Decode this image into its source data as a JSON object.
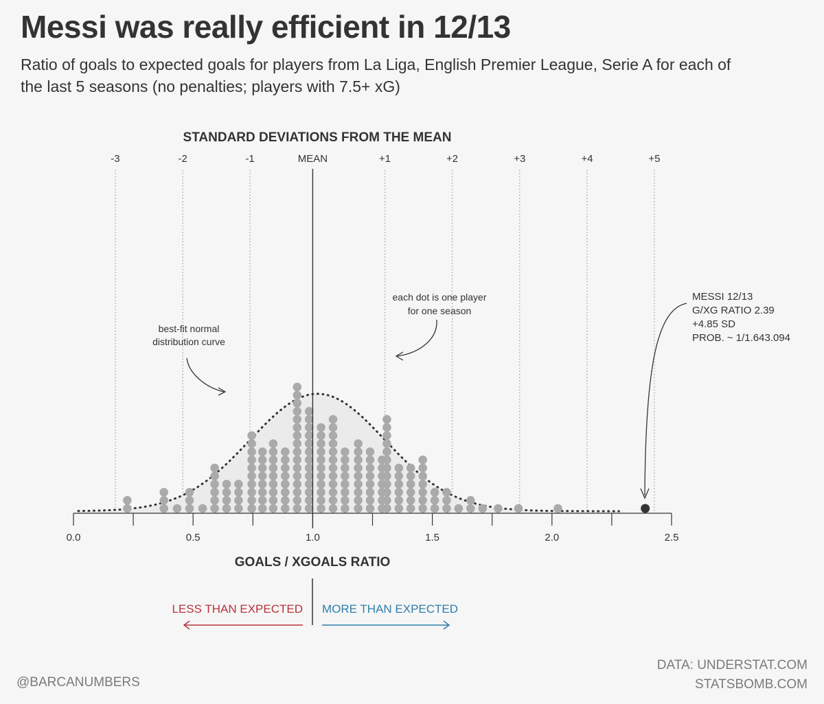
{
  "header": {
    "title": "Messi was really efficient in 12/13",
    "subtitle": "Ratio of goals to expected goals for players from La Liga, English Premier League, Serie A for each of the last 5 seasons (no penalties; players with 7.5+ xG)"
  },
  "footer": {
    "left": "@BARCANUMBERS",
    "right_line1": "DATA: UNDERSTAT.COM",
    "right_line2": "STATSBOMB.COM"
  },
  "colors": {
    "text": "#333333",
    "dot": "#aaaaaa",
    "highlight_dot": "#333333",
    "curve_fill": "#ebebeb",
    "less_color": "#b8323a",
    "more_color": "#2f7ea8",
    "footer": "#7a7a7a"
  },
  "chart_data": {
    "type": "dot-histogram",
    "xlabel": "GOALS / XGOALS RATIO",
    "top_axis_label": "STANDARD DEVIATIONS FROM THE MEAN",
    "xlim": [
      0.0,
      2.5
    ],
    "x_ticks": [
      0.0,
      0.5,
      1.0,
      1.5,
      2.0,
      2.5
    ],
    "x_tick_labels": [
      "0.0",
      "0.5",
      "1.0",
      "1.5",
      "2.0",
      "2.5"
    ],
    "x_minor_ticks": [
      0.25,
      0.75,
      1.25,
      1.75,
      2.25
    ],
    "sd_lines": [
      {
        "label": "-3",
        "x": 0.175
      },
      {
        "label": "-2",
        "x": 0.457
      },
      {
        "label": "-1",
        "x": 0.738
      },
      {
        "label": "MEAN",
        "x": 1.0
      },
      {
        "label": "+1",
        "x": 1.302
      },
      {
        "label": "+2",
        "x": 1.583
      },
      {
        "label": "+3",
        "x": 1.865
      },
      {
        "label": "+4",
        "x": 2.147
      },
      {
        "label": "+5",
        "x": 2.428
      }
    ],
    "normal_curve": {
      "mean": 1.02,
      "sd": 0.282,
      "peak_dots": 14.5
    },
    "columns": [
      {
        "x": 0.225,
        "count": 2
      },
      {
        "x": 0.378,
        "count": 3
      },
      {
        "x": 0.433,
        "count": 1
      },
      {
        "x": 0.485,
        "count": 3
      },
      {
        "x": 0.54,
        "count": 1
      },
      {
        "x": 0.59,
        "count": 6
      },
      {
        "x": 0.64,
        "count": 4
      },
      {
        "x": 0.69,
        "count": 4
      },
      {
        "x": 0.745,
        "count": 10
      },
      {
        "x": 0.79,
        "count": 8
      },
      {
        "x": 0.835,
        "count": 9
      },
      {
        "x": 0.885,
        "count": 8
      },
      {
        "x": 0.935,
        "count": 16
      },
      {
        "x": 0.985,
        "count": 13
      },
      {
        "x": 1.035,
        "count": 11
      },
      {
        "x": 1.085,
        "count": 12
      },
      {
        "x": 1.135,
        "count": 8
      },
      {
        "x": 1.19,
        "count": 9
      },
      {
        "x": 1.24,
        "count": 8
      },
      {
        "x": 1.29,
        "count": 7
      },
      {
        "x": 1.31,
        "count": 12
      },
      {
        "x": 1.36,
        "count": 6
      },
      {
        "x": 1.41,
        "count": 6
      },
      {
        "x": 1.46,
        "count": 7
      },
      {
        "x": 1.51,
        "count": 3
      },
      {
        "x": 1.56,
        "count": 3
      },
      {
        "x": 1.61,
        "count": 1
      },
      {
        "x": 1.66,
        "count": 2
      },
      {
        "x": 1.71,
        "count": 1
      },
      {
        "x": 1.775,
        "count": 1
      },
      {
        "x": 1.86,
        "count": 1
      },
      {
        "x": 2.025,
        "count": 1
      }
    ],
    "highlight": {
      "x": 2.39,
      "label": "MESSI 12/13"
    },
    "annotations": {
      "curve_label": [
        "best-fit normal",
        "distribution curve"
      ],
      "dot_label": [
        "each dot is one player",
        "for one season"
      ],
      "messi_label": [
        "MESSI 12/13",
        "G/XG RATIO 2.39",
        "+4.85 SD",
        "PROB. ~ 1/1.643.094"
      ]
    },
    "direction": {
      "less": "LESS THAN EXPECTED",
      "more": "MORE THAN EXPECTED"
    }
  }
}
